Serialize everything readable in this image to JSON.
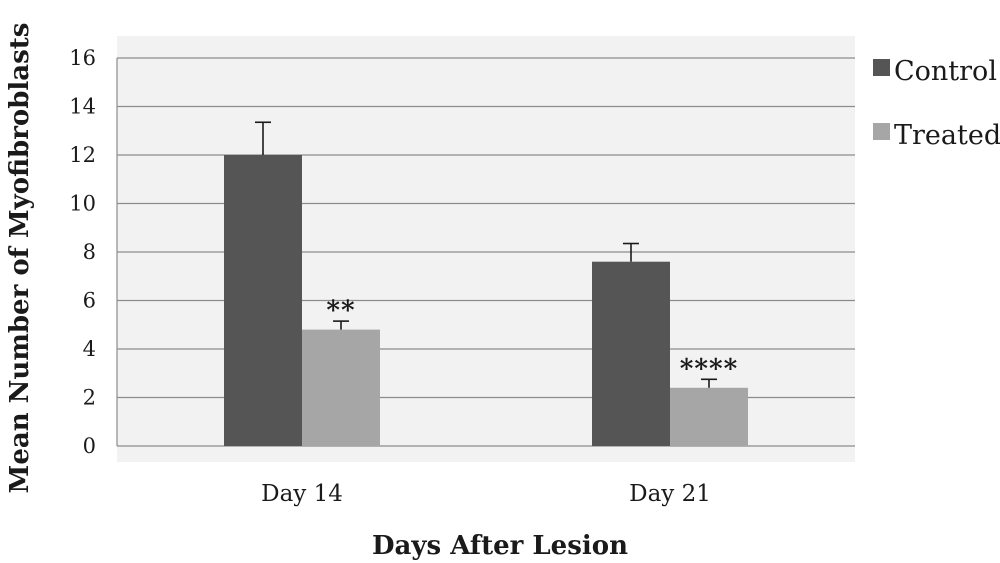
{
  "chart_data": {
    "type": "bar",
    "categories": [
      "Day 14",
      "Day 21"
    ],
    "series": [
      {
        "name": "Control",
        "values": [
          12.0,
          7.6
        ],
        "errors": [
          1.35,
          0.75
        ],
        "color": "#555555"
      },
      {
        "name": "Treated",
        "values": [
          4.8,
          2.4
        ],
        "errors": [
          0.35,
          0.35
        ],
        "color": "#a6a6a6"
      }
    ],
    "significance": [
      {
        "category": "Day 14",
        "series": "Treated",
        "label": "**"
      },
      {
        "category": "Day 21",
        "series": "Treated",
        "label": "****"
      }
    ],
    "title": "",
    "xlabel": "Days After Lesion",
    "ylabel": "Mean Number of Myofibroblasts",
    "ylim": [
      0,
      16
    ],
    "yticks": [
      "0",
      "2",
      "4",
      "6",
      "8",
      "10",
      "12",
      "14",
      "16"
    ],
    "grid": true,
    "legend_position": "right",
    "plot_background": "#f2f2f2"
  }
}
